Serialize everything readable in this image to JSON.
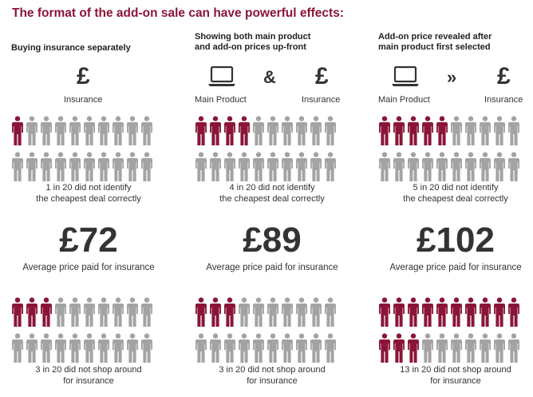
{
  "title": "The format of the add-on sale can have powerful effects:",
  "colors": {
    "accent": "#8a1538",
    "neutral": "#a3a3a3"
  },
  "icons": {
    "pound": "£",
    "amp": "&",
    "arrow": "»"
  },
  "columns": [
    {
      "heading": "Buying insurance separately",
      "left_label": "",
      "right_label": "Insurance",
      "connector": "",
      "identify_count": 1,
      "identify_line1": "1 in 20 did not identify",
      "identify_line2": "the cheapest deal correctly",
      "price": "£72",
      "price_label": "Average price paid for insurance",
      "shop_count": 3,
      "shop_line1": "3 in 20 did not shop around",
      "shop_line2": "for insurance"
    },
    {
      "heading": "Showing both main product\nand add-on prices up-front",
      "left_label": "Main Product",
      "right_label": "Insurance",
      "connector": "&",
      "identify_count": 4,
      "identify_line1": "4 in 20 did not identify",
      "identify_line2": "the cheapest deal correctly",
      "price": "£89",
      "price_label": "Average price paid for insurance",
      "shop_count": 3,
      "shop_line1": "3 in 20 did not shop around",
      "shop_line2": "for insurance"
    },
    {
      "heading": "Add-on price revealed after\nmain product first selected",
      "left_label": "Main Product",
      "right_label": "Insurance",
      "connector": "»",
      "identify_count": 5,
      "identify_line1": "5 in 20 did not identify",
      "identify_line2": "the cheapest deal correctly",
      "price": "£102",
      "price_label": "Average price paid for insurance",
      "shop_count": 13,
      "shop_line1": "13 in 20 did not shop around",
      "shop_line2": "for insurance"
    }
  ]
}
